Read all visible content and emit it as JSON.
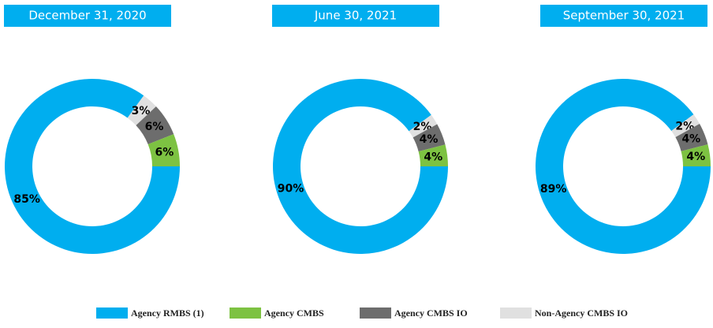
{
  "legend": {
    "labels": [
      "Agency RMBS (1)",
      "Agency CMBS",
      "Agency CMBS IO",
      "Non-Agency CMBS IO"
    ],
    "colors": [
      "#00aeef",
      "#7dc242",
      "#6d6d6d",
      "#e0e0e0"
    ]
  },
  "chart_data": [
    {
      "type": "pie",
      "title": "December 31, 2020",
      "values": [
        85,
        6,
        6,
        3
      ],
      "value_labels": [
        "85%",
        "6%",
        "6%",
        "3%"
      ]
    },
    {
      "type": "pie",
      "title": "June 30, 2021",
      "values": [
        90,
        4,
        4,
        2
      ],
      "value_labels": [
        "90%",
        "4%",
        "4%",
        "2%"
      ]
    },
    {
      "type": "pie",
      "title": "September 30, 2021",
      "values": [
        89,
        4,
        4,
        2
      ],
      "value_labels": [
        "89%",
        "4%",
        "4%",
        "2%"
      ]
    }
  ]
}
